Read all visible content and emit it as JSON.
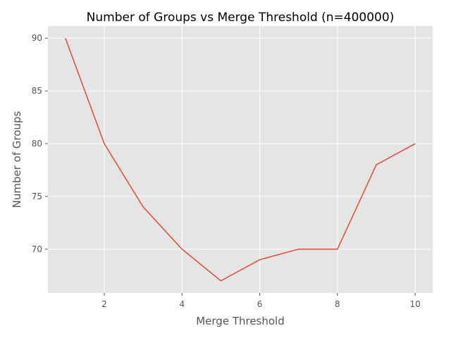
{
  "chart_data": {
    "type": "line",
    "title": "Number of Groups vs Merge Threshold (n=400000)",
    "xlabel": "Merge Threshold",
    "ylabel": "Number of Groups",
    "x": [
      1,
      2,
      3,
      4,
      5,
      6,
      7,
      8,
      9,
      10
    ],
    "series": [
      {
        "values": [
          90,
          80,
          74,
          70,
          67,
          69,
          70,
          70,
          78,
          80
        ]
      }
    ],
    "xlim": [
      0.55,
      10.45
    ],
    "ylim": [
      65.85,
      91.15
    ],
    "xticks": [
      2,
      4,
      6,
      8,
      10
    ],
    "yticks": [
      70,
      75,
      80,
      85,
      90
    ],
    "grid": true,
    "colors": {
      "background": "#e5e5e5",
      "grid": "#ffffff",
      "line": "#e24a33"
    }
  }
}
